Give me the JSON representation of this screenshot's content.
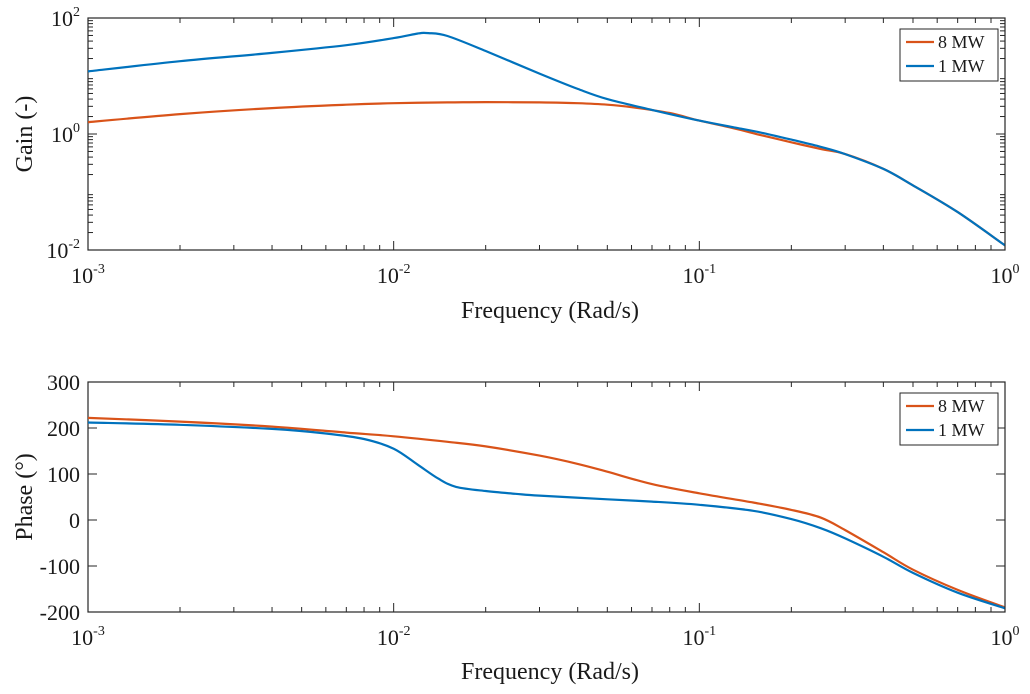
{
  "colors": {
    "series_8mw": "#d95319",
    "series_1mw": "#0072bd",
    "axis": "#262626",
    "background": "#ffffff"
  },
  "chart_data": [
    {
      "type": "line",
      "xlabel": "Frequency (Rad/s)",
      "ylabel": "Gain (-)",
      "xscale": "log",
      "yscale": "log",
      "xlim": [
        0.001,
        1
      ],
      "ylim": [
        0.01,
        100
      ],
      "xticks": [
        0.001,
        0.01,
        0.1,
        1
      ],
      "xtick_labels": [
        {
          "base": "10",
          "exp": "-3"
        },
        {
          "base": "10",
          "exp": "-2"
        },
        {
          "base": "10",
          "exp": "-1"
        },
        {
          "base": "10",
          "exp": "0"
        }
      ],
      "yticks": [
        0.01,
        1,
        100
      ],
      "ytick_labels": [
        {
          "base": "10",
          "exp": "-2"
        },
        {
          "base": "10",
          "exp": "0"
        },
        {
          "base": "10",
          "exp": "2"
        }
      ],
      "grid": false,
      "legend": "top-right",
      "series": [
        {
          "name": "8 MW",
          "color": "#d95319",
          "x": [
            0.001,
            0.002,
            0.004,
            0.007,
            0.01,
            0.015,
            0.02,
            0.03,
            0.04,
            0.05,
            0.06,
            0.08,
            0.1,
            0.13,
            0.16,
            0.2,
            0.25,
            0.3,
            0.4,
            0.5,
            0.7,
            1.0
          ],
          "y": [
            1.6,
            2.2,
            2.8,
            3.2,
            3.4,
            3.5,
            3.55,
            3.5,
            3.4,
            3.2,
            2.9,
            2.3,
            1.7,
            1.25,
            0.95,
            0.72,
            0.55,
            0.45,
            0.25,
            0.13,
            0.045,
            0.012
          ]
        },
        {
          "name": "1 MW",
          "color": "#0072bd",
          "x": [
            0.001,
            0.002,
            0.004,
            0.007,
            0.01,
            0.012,
            0.013,
            0.015,
            0.02,
            0.03,
            0.04,
            0.05,
            0.07,
            0.1,
            0.13,
            0.16,
            0.2,
            0.25,
            0.3,
            0.4,
            0.5,
            0.7,
            1.0
          ],
          "y": [
            12.0,
            18.0,
            25.0,
            34.0,
            45.0,
            54.0,
            55.0,
            49.0,
            27.0,
            11.0,
            6.0,
            4.0,
            2.6,
            1.7,
            1.3,
            1.05,
            0.8,
            0.6,
            0.45,
            0.25,
            0.13,
            0.045,
            0.012
          ]
        }
      ]
    },
    {
      "type": "line",
      "xlabel": "Frequency (Rad/s)",
      "ylabel": "Phase (°)",
      "xscale": "log",
      "yscale": "linear",
      "xlim": [
        0.001,
        1
      ],
      "ylim": [
        -200,
        300
      ],
      "xticks": [
        0.001,
        0.01,
        0.1,
        1
      ],
      "xtick_labels": [
        {
          "base": "10",
          "exp": "-3"
        },
        {
          "base": "10",
          "exp": "-2"
        },
        {
          "base": "10",
          "exp": "-1"
        },
        {
          "base": "10",
          "exp": "0"
        }
      ],
      "yticks": [
        -200,
        -100,
        0,
        100,
        200,
        300
      ],
      "ytick_labels": [
        "-200",
        "-100",
        "0",
        "100",
        "200",
        "300"
      ],
      "grid": false,
      "legend": "top-right",
      "series": [
        {
          "name": "8 MW",
          "color": "#d95319",
          "x": [
            0.001,
            0.002,
            0.004,
            0.007,
            0.01,
            0.015,
            0.02,
            0.03,
            0.04,
            0.05,
            0.07,
            0.1,
            0.15,
            0.2,
            0.25,
            0.3,
            0.4,
            0.5,
            0.7,
            1.0
          ],
          "y": [
            222,
            214,
            203,
            190,
            182,
            170,
            160,
            140,
            122,
            105,
            78,
            58,
            38,
            22,
            5,
            -22,
            -70,
            -108,
            -152,
            -190
          ]
        },
        {
          "name": "1 MW",
          "color": "#0072bd",
          "x": [
            0.001,
            0.002,
            0.004,
            0.006,
            0.008,
            0.01,
            0.012,
            0.014,
            0.016,
            0.02,
            0.025,
            0.03,
            0.05,
            0.07,
            0.1,
            0.15,
            0.2,
            0.25,
            0.3,
            0.4,
            0.5,
            0.7,
            1.0
          ],
          "y": [
            212,
            207,
            198,
            188,
            176,
            155,
            120,
            90,
            72,
            63,
            57,
            53,
            45,
            40,
            33,
            20,
            2,
            -18,
            -40,
            -80,
            -115,
            -158,
            -192
          ]
        }
      ]
    }
  ]
}
